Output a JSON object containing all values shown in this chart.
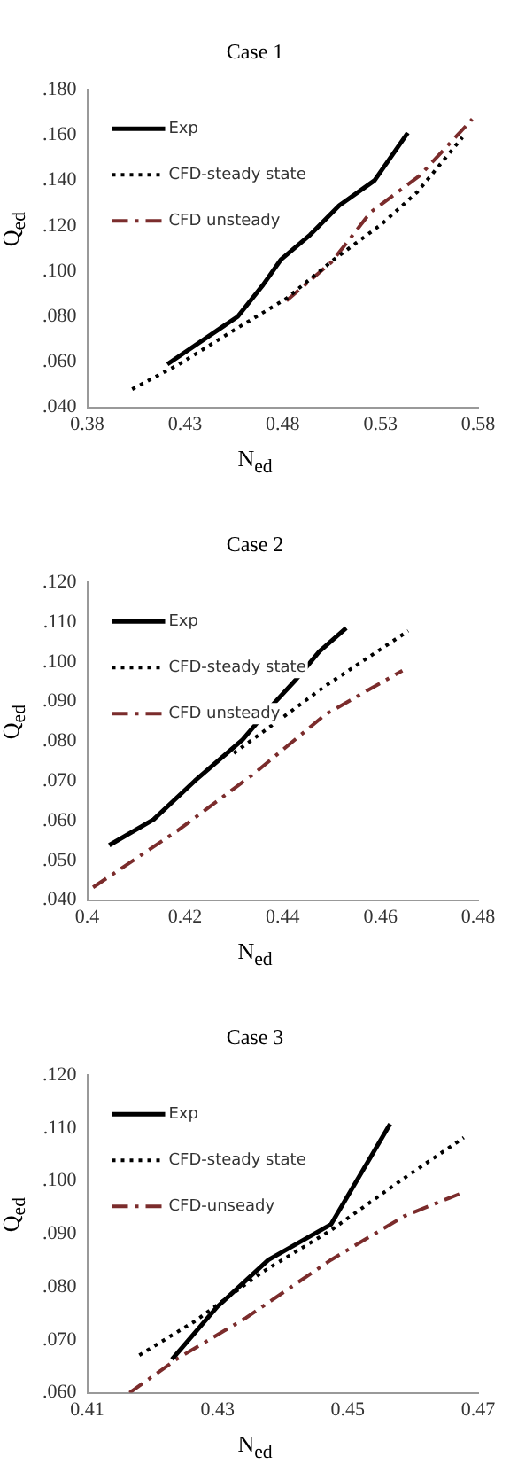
{
  "chart_data": [
    {
      "type": "line",
      "title": "Case 1",
      "xlabel": "N$_{ed}$",
      "ylabel": "Q$_{ed}$",
      "xlim": [
        0.38,
        0.58
      ],
      "xticks": [
        0.38,
        0.43,
        0.48,
        0.53,
        0.58
      ],
      "ylim": [
        0.04,
        0.18
      ],
      "yticks": [
        {
          "value": 0.04,
          "label": ".040"
        },
        {
          "value": 0.06,
          "label": ".060"
        },
        {
          "value": 0.08,
          "label": ".080"
        },
        {
          "value": 0.1,
          "label": ".100"
        },
        {
          "value": 0.12,
          "label": ".120"
        },
        {
          "value": 0.14,
          "label": ".140"
        },
        {
          "value": 0.16,
          "label": ".160"
        },
        {
          "value": 0.18,
          "label": ".180"
        }
      ],
      "grid": false,
      "legend": "top left",
      "marker": "none",
      "series": [
        {
          "name": "Exp",
          "color": "#000000",
          "line_style": "solid",
          "x": [
            0.421,
            0.457,
            0.47,
            0.479,
            0.494,
            0.509,
            0.527,
            0.544
          ],
          "values": [
            0.059,
            0.08,
            0.094,
            0.105,
            0.116,
            0.129,
            0.14,
            0.161
          ]
        },
        {
          "name": "CFD-steady state",
          "color": "#000000",
          "line_style": "dotted",
          "x": [
            0.403,
            0.427,
            0.457,
            0.482,
            0.506,
            0.531,
            0.549,
            0.572
          ],
          "values": [
            0.048,
            0.059,
            0.075,
            0.088,
            0.105,
            0.121,
            0.135,
            0.159
          ]
        },
        {
          "name": "CFD unsteady",
          "color": "#7b2c2c",
          "line_style": "dashed",
          "x": [
            0.482,
            0.505,
            0.525,
            0.55,
            0.577
          ],
          "values": [
            0.087,
            0.104,
            0.126,
            0.142,
            0.167
          ]
        }
      ]
    },
    {
      "type": "line",
      "title": "Case 2",
      "xlabel": "N$_{ed}$",
      "ylabel": "Q$_{ed}$",
      "xlim": [
        0.4,
        0.48
      ],
      "xticks": [
        0.4,
        0.42,
        0.44,
        0.46,
        0.48
      ],
      "ylim": [
        0.04,
        0.12
      ],
      "yticks": [
        {
          "value": 0.04,
          "label": ".040"
        },
        {
          "value": 0.05,
          "label": ".050"
        },
        {
          "value": 0.06,
          "label": ".060"
        },
        {
          "value": 0.07,
          "label": ".070"
        },
        {
          "value": 0.08,
          "label": ".080"
        },
        {
          "value": 0.09,
          "label": ".090"
        },
        {
          "value": 0.1,
          "label": ".100"
        },
        {
          "value": 0.11,
          "label": ".110"
        },
        {
          "value": 0.12,
          "label": ".120"
        }
      ],
      "grid": false,
      "legend": "top left",
      "marker": "none",
      "series": [
        {
          "name": "Exp",
          "color": "#000000",
          "line_style": "solid",
          "x": [
            0.4045,
            0.4136,
            0.422,
            0.4318,
            0.4378,
            0.4427,
            0.4475,
            0.453
          ],
          "values": [
            0.0538,
            0.0603,
            0.07,
            0.0804,
            0.089,
            0.0955,
            0.1026,
            0.1085
          ]
        },
        {
          "name": "CFD-steady state",
          "color": "#000000",
          "line_style": "dotted",
          "x": [
            0.43,
            0.4378,
            0.4487,
            0.4657
          ],
          "values": [
            0.077,
            0.084,
            0.0939,
            0.1078
          ]
        },
        {
          "name": "CFD unsteady",
          "color": "#7b2c2c",
          "line_style": "dashed",
          "x": [
            0.4012,
            0.4184,
            0.434,
            0.4487,
            0.4645
          ],
          "values": [
            0.0432,
            0.0574,
            0.0717,
            0.0867,
            0.0978
          ]
        }
      ]
    },
    {
      "type": "line",
      "title": "Case 3",
      "xlabel": "N$_{ed}$",
      "ylabel": "Q$_{ed}$",
      "xlim": [
        0.41,
        0.47
      ],
      "xticks": [
        0.41,
        0.43,
        0.45,
        0.47
      ],
      "ylim": [
        0.06,
        0.12
      ],
      "yticks": [
        {
          "value": 0.06,
          "label": ".060"
        },
        {
          "value": 0.07,
          "label": ".070"
        },
        {
          "value": 0.08,
          "label": ".080"
        },
        {
          "value": 0.09,
          "label": ".090"
        },
        {
          "value": 0.1,
          "label": ".100"
        },
        {
          "value": 0.11,
          "label": ".110"
        },
        {
          "value": 0.12,
          "label": ".120"
        }
      ],
      "grid": false,
      "legend": "top left",
      "marker": "none",
      "series": [
        {
          "name": "Exp",
          "color": "#000000",
          "line_style": "solid",
          "x": [
            0.423,
            0.43,
            0.4378,
            0.4474,
            0.4565
          ],
          "values": [
            0.0663,
            0.0763,
            0.0851,
            0.0918,
            0.1108
          ]
        },
        {
          "name": "CFD-steady state",
          "color": "#000000",
          "line_style": "dotted",
          "x": [
            0.418,
            0.4265,
            0.437,
            0.4474,
            0.4587,
            0.4678
          ],
          "values": [
            0.0671,
            0.0735,
            0.0829,
            0.0907,
            0.1006,
            0.1082
          ]
        },
        {
          "name": "CFD-unseady",
          "color": "#7b2c2c",
          "line_style": "dashed",
          "x": [
            0.4165,
            0.4239,
            0.4343,
            0.4474,
            0.4587,
            0.4678
          ],
          "values": [
            0.06,
            0.0665,
            0.0741,
            0.0851,
            0.0934,
            0.0979
          ]
        }
      ]
    }
  ]
}
